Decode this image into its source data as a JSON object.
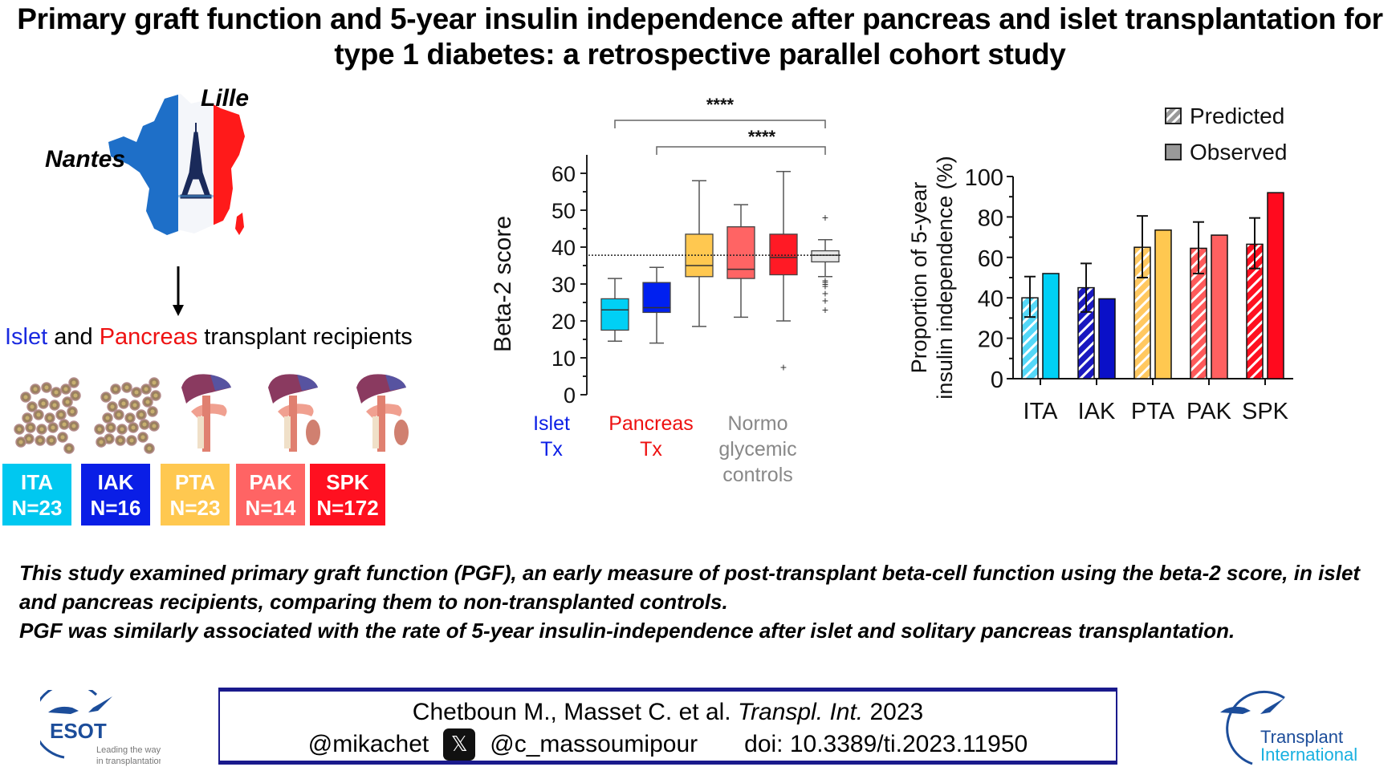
{
  "title": "Primary graft function and 5-year insulin independence after pancreas and islet transplantation for type 1 diabetes: a retrospective parallel cohort study",
  "map": {
    "icon": "france-map-icon",
    "cities": [
      "Lille",
      "Nantes"
    ]
  },
  "recipients_heading": {
    "islet": "Islet",
    "and": " and ",
    "pancreas": "Pancreas",
    "rest": " transplant recipients"
  },
  "groups": [
    {
      "code": "ITA",
      "n": "N=23",
      "color": "#00c8f0",
      "icon": "islet-cells-icon"
    },
    {
      "code": "IAK",
      "n": "N=16",
      "color": "#0a1ee6",
      "icon": "islet-cells-icon"
    },
    {
      "code": "PTA",
      "n": "N=23",
      "color": "#ffc850",
      "icon": "pancreas-organ-icon"
    },
    {
      "code": "PAK",
      "n": "N=14",
      "color": "#ff6464",
      "icon": "pancreas-organ-icon"
    },
    {
      "code": "SPK",
      "n": "N=172",
      "color": "#ff1020",
      "icon": "pancreas-organ-icon"
    }
  ],
  "chart_data": [
    {
      "type": "box",
      "title": "",
      "ylabel": "Beta-2 score",
      "xlabel": "",
      "ylim": [
        0,
        65
      ],
      "yticks": [
        0,
        10,
        20,
        30,
        40,
        50,
        60
      ],
      "reference_line": 37.8,
      "groups": [
        {
          "name": "ITA",
          "color": "#00d0f5",
          "min": 14.5,
          "q1": 17.5,
          "median": 23,
          "q3": 26,
          "max": 31.5,
          "outliers": []
        },
        {
          "name": "IAK",
          "color": "#0020f0",
          "min": 14,
          "q1": 22.3,
          "median": 23.6,
          "q3": 30.4,
          "max": 34.5,
          "outliers": []
        },
        {
          "name": "PTA",
          "color": "#ffc850",
          "min": 18.5,
          "q1": 32,
          "median": 35,
          "q3": 43.5,
          "max": 58,
          "outliers": []
        },
        {
          "name": "PAK",
          "color": "#ff6464",
          "min": 21,
          "q1": 31.5,
          "median": 34,
          "q3": 45.5,
          "max": 51.5,
          "outliers": []
        },
        {
          "name": "SPK",
          "color": "#ff1a25",
          "min": 20,
          "q1": 32.5,
          "median": 37.2,
          "q3": 43.5,
          "max": 60.5,
          "outliers": [
            7.5
          ]
        },
        {
          "name": "Normoglycemic controls",
          "color": "#e8e8e8",
          "min": 32,
          "q1": 36,
          "median": 37.8,
          "q3": 39,
          "max": 42,
          "outliers": [
            48,
            31,
            30.5,
            30,
            29.5,
            27.5,
            25.5,
            23
          ]
        }
      ],
      "group_labels": [
        {
          "text": [
            "Islet",
            "Tx"
          ],
          "color": "#0a1ee6"
        },
        {
          "text": [
            "Pancreas",
            "Tx"
          ],
          "color": "#ee1111"
        },
        {
          "text": [
            "Normo",
            "glycemic",
            "controls"
          ],
          "color": "#888888"
        }
      ],
      "significance": [
        {
          "label": "****",
          "from": "Islet Tx",
          "to": "Normoglycemic controls"
        },
        {
          "label": "****",
          "from": "Pancreas Tx",
          "to": "Normoglycemic controls"
        }
      ]
    },
    {
      "type": "bar",
      "title": "",
      "ylabel": "Proportion of 5-year insulin independence (%)",
      "xlabel": "",
      "ylim": [
        0,
        100
      ],
      "yticks": [
        0,
        20,
        40,
        60,
        80,
        100
      ],
      "categories": [
        "ITA",
        "IAK",
        "PTA",
        "PAK",
        "SPK"
      ],
      "legend": {
        "position": "top-right",
        "entries": [
          "Predicted",
          "Observed"
        ]
      },
      "series": [
        {
          "name": "Predicted",
          "pattern": "hatched",
          "values": [
            40,
            45,
            65,
            64.5,
            66.5
          ],
          "error_low": [
            30.5,
            33,
            50,
            52,
            54.5
          ],
          "error_high": [
            50.5,
            57,
            80.5,
            77.5,
            79.5
          ]
        },
        {
          "name": "Observed",
          "pattern": "solid",
          "values": [
            52,
            39.5,
            73.5,
            71,
            92
          ]
        }
      ],
      "colors": [
        "#00d0f5",
        "#0a10c8",
        "#ffc850",
        "#ff6060",
        "#ff0a1e"
      ],
      "hatch_colors": [
        "#55d8f8",
        "#1a18c0",
        "#ffc860",
        "#ff5a5a",
        "#ff1020"
      ]
    }
  ],
  "summary": {
    "p1": "This study examined primary graft function (PGF), an early measure of post-transplant beta-cell function using the beta-2 score, in islet and pancreas recipients, comparing them to non-transplanted controls.",
    "p2": "PGF was similarly associated with the rate of 5-year insulin-independence after islet and solitary pancreas transplantation."
  },
  "citation": {
    "authors": "Chetboun M., Masset C. et al. ",
    "journal": "Transpl. Int.",
    "year": " 2023",
    "handle1": "@mikachet",
    "x_icon": "x-logo-icon",
    "handle2": "@c_massoumipour",
    "doi": "doi: 10.3389/ti.2023.11950"
  },
  "logos": {
    "esot": {
      "name": "ESOT",
      "tagline1": "Leading the way",
      "tagline2": "in transplantation"
    },
    "ti": {
      "line1": "Transplant",
      "line2": "International"
    }
  }
}
